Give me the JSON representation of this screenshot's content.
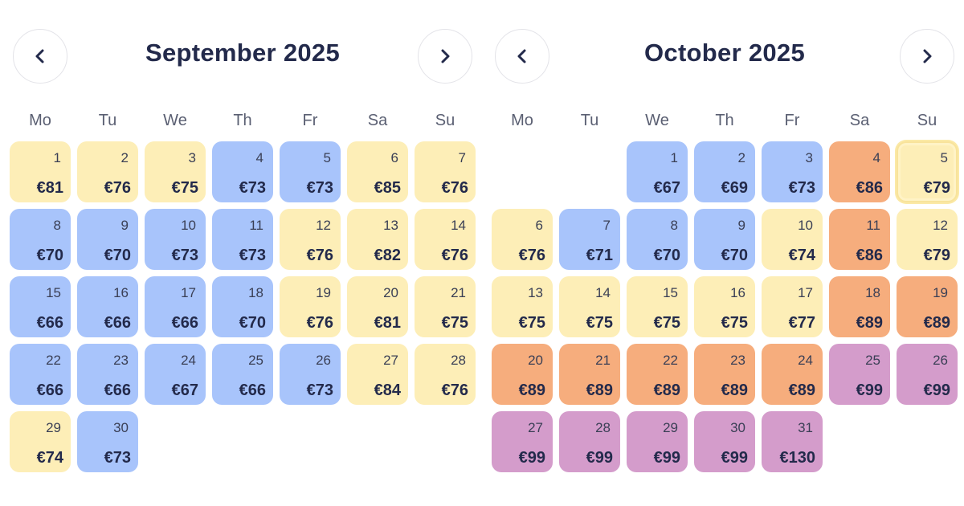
{
  "weekdays": [
    "Mo",
    "Tu",
    "We",
    "Th",
    "Fr",
    "Sa",
    "Su"
  ],
  "legend_colors": {
    "yellow": "#fdeeb7",
    "blue": "#a8c4fb",
    "orange": "#f6ad7d",
    "purple": "#d49ccb"
  },
  "months": [
    {
      "title": "September 2025",
      "start_offset": 0,
      "days": [
        {
          "day": "1",
          "price": "€81",
          "color": "yellow"
        },
        {
          "day": "2",
          "price": "€76",
          "color": "yellow"
        },
        {
          "day": "3",
          "price": "€75",
          "color": "yellow"
        },
        {
          "day": "4",
          "price": "€73",
          "color": "blue"
        },
        {
          "day": "5",
          "price": "€73",
          "color": "blue"
        },
        {
          "day": "6",
          "price": "€85",
          "color": "yellow"
        },
        {
          "day": "7",
          "price": "€76",
          "color": "yellow"
        },
        {
          "day": "8",
          "price": "€70",
          "color": "blue"
        },
        {
          "day": "9",
          "price": "€70",
          "color": "blue"
        },
        {
          "day": "10",
          "price": "€73",
          "color": "blue"
        },
        {
          "day": "11",
          "price": "€73",
          "color": "blue"
        },
        {
          "day": "12",
          "price": "€76",
          "color": "yellow"
        },
        {
          "day": "13",
          "price": "€82",
          "color": "yellow"
        },
        {
          "day": "14",
          "price": "€76",
          "color": "yellow"
        },
        {
          "day": "15",
          "price": "€66",
          "color": "blue"
        },
        {
          "day": "16",
          "price": "€66",
          "color": "blue"
        },
        {
          "day": "17",
          "price": "€66",
          "color": "blue"
        },
        {
          "day": "18",
          "price": "€70",
          "color": "blue"
        },
        {
          "day": "19",
          "price": "€76",
          "color": "yellow"
        },
        {
          "day": "20",
          "price": "€81",
          "color": "yellow"
        },
        {
          "day": "21",
          "price": "€75",
          "color": "yellow"
        },
        {
          "day": "22",
          "price": "€66",
          "color": "blue"
        },
        {
          "day": "23",
          "price": "€66",
          "color": "blue"
        },
        {
          "day": "24",
          "price": "€67",
          "color": "blue"
        },
        {
          "day": "25",
          "price": "€66",
          "color": "blue"
        },
        {
          "day": "26",
          "price": "€73",
          "color": "blue"
        },
        {
          "day": "27",
          "price": "€84",
          "color": "yellow"
        },
        {
          "day": "28",
          "price": "€76",
          "color": "yellow"
        },
        {
          "day": "29",
          "price": "€74",
          "color": "yellow"
        },
        {
          "day": "30",
          "price": "€73",
          "color": "blue"
        }
      ]
    },
    {
      "title": "October 2025",
      "start_offset": 2,
      "days": [
        {
          "day": "1",
          "price": "€67",
          "color": "blue"
        },
        {
          "day": "2",
          "price": "€69",
          "color": "blue"
        },
        {
          "day": "3",
          "price": "€73",
          "color": "blue"
        },
        {
          "day": "4",
          "price": "€86",
          "color": "orange"
        },
        {
          "day": "5",
          "price": "€79",
          "color": "yellow",
          "selected": true
        },
        {
          "day": "6",
          "price": "€76",
          "color": "yellow"
        },
        {
          "day": "7",
          "price": "€71",
          "color": "blue"
        },
        {
          "day": "8",
          "price": "€70",
          "color": "blue"
        },
        {
          "day": "9",
          "price": "€70",
          "color": "blue"
        },
        {
          "day": "10",
          "price": "€74",
          "color": "yellow"
        },
        {
          "day": "11",
          "price": "€86",
          "color": "orange"
        },
        {
          "day": "12",
          "price": "€79",
          "color": "yellow"
        },
        {
          "day": "13",
          "price": "€75",
          "color": "yellow"
        },
        {
          "day": "14",
          "price": "€75",
          "color": "yellow"
        },
        {
          "day": "15",
          "price": "€75",
          "color": "yellow"
        },
        {
          "day": "16",
          "price": "€75",
          "color": "yellow"
        },
        {
          "day": "17",
          "price": "€77",
          "color": "yellow"
        },
        {
          "day": "18",
          "price": "€89",
          "color": "orange"
        },
        {
          "day": "19",
          "price": "€89",
          "color": "orange"
        },
        {
          "day": "20",
          "price": "€89",
          "color": "orange"
        },
        {
          "day": "21",
          "price": "€89",
          "color": "orange"
        },
        {
          "day": "22",
          "price": "€89",
          "color": "orange"
        },
        {
          "day": "23",
          "price": "€89",
          "color": "orange"
        },
        {
          "day": "24",
          "price": "€89",
          "color": "orange"
        },
        {
          "day": "25",
          "price": "€99",
          "color": "purple"
        },
        {
          "day": "26",
          "price": "€99",
          "color": "purple"
        },
        {
          "day": "27",
          "price": "€99",
          "color": "purple"
        },
        {
          "day": "28",
          "price": "€99",
          "color": "purple"
        },
        {
          "day": "29",
          "price": "€99",
          "color": "purple"
        },
        {
          "day": "30",
          "price": "€99",
          "color": "purple"
        },
        {
          "day": "31",
          "price": "€130",
          "color": "purple"
        }
      ]
    }
  ],
  "icons": {
    "prev": "chevron-left-icon",
    "next": "chevron-right-icon"
  }
}
